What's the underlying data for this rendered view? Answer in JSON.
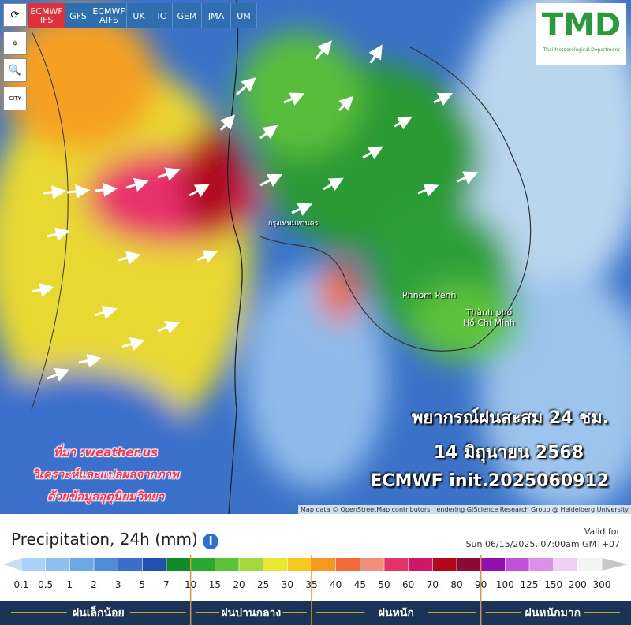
{
  "models": [
    "ECMWF IFS",
    "GFS",
    "ECMWF AIFS",
    "UK",
    "IC",
    "GEM",
    "JMA",
    "UM"
  ],
  "tools": [
    "CITY"
  ],
  "logo": {
    "text": "TMD",
    "subtitle": "Thai Meteorological Department"
  },
  "map_labels": [
    "กรุงเทพมหานคร",
    "Phnom Penh",
    "Thành phố Hồ Chí Minh"
  ],
  "overlay": {
    "title": "พยากรณ์ฝนสะสม 24 ชม.",
    "date": "14 มิถุนายน 2568",
    "model": "ECMWF init.2025060912"
  },
  "source": [
    "ที่มา :weather.us",
    "วิเคราะห์และแปลผลจากภาพ",
    "ด้วยข้อมูลอุตุนิยมวิทยา"
  ],
  "attribution": "Map data © OpenStreetMap contributors, rendering GIScience Research Group @ Heidelberg University",
  "legend": {
    "title": "Precipitation, 24h (mm)",
    "valid_label": "Valid for",
    "valid_time": "Sun 06/15/2025, 07:00am GMT+07",
    "ticks": [
      0.1,
      0.5,
      1,
      2,
      3,
      5,
      7,
      10,
      15,
      20,
      25,
      30,
      35,
      40,
      45,
      50,
      60,
      70,
      80,
      90,
      100,
      125,
      150,
      200,
      300
    ],
    "colors": [
      "#c8def2",
      "#a9d0f5",
      "#8dc0ef",
      "#6aa8e6",
      "#4f8ddb",
      "#3a70cc",
      "#2050b0",
      "#108a28",
      "#2aa830",
      "#5cc23a",
      "#a4d83c",
      "#e8e830",
      "#f5c820",
      "#f59a20",
      "#f06a3a",
      "#f0907a",
      "#e8306a",
      "#d0186a",
      "#b00a1a",
      "#8a0a3a",
      "#9010b0",
      "#c050d8",
      "#d890e8",
      "#f0d0f5",
      "#f4f4f4",
      "#c8c8c8"
    ],
    "categories": [
      "ฝนเล็กน้อย",
      "ฝนปานกลาง",
      "ฝนหนัก",
      "ฝนหนักมาก"
    ]
  }
}
